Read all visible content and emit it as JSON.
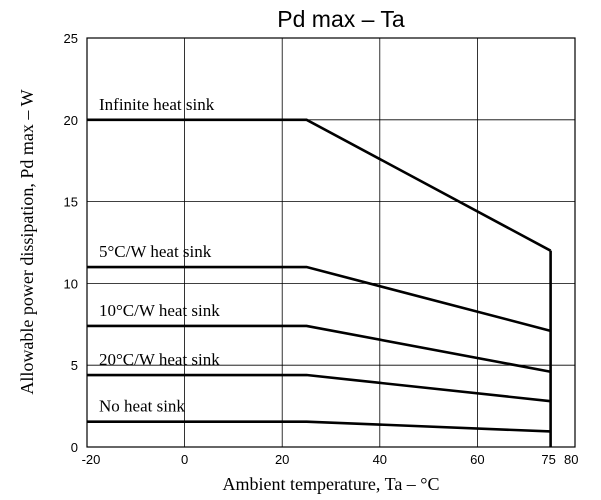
{
  "chart_data": {
    "type": "line",
    "title": "Pd max – Ta",
    "xlabel": "Ambient temperature,  Ta – °C",
    "ylabel": "Allowable power dissipation,  Pd max – W",
    "xlim": [
      -20,
      80
    ],
    "ylim": [
      0,
      25
    ],
    "xticks": [
      -20,
      0,
      20,
      40,
      60,
      75,
      80
    ],
    "xtick_labels": [
      "-20",
      "0",
      "20",
      "40",
      "60",
      "75",
      "80"
    ],
    "xgrid": [
      0,
      20,
      40,
      60
    ],
    "yticks": [
      0,
      5,
      10,
      15,
      20,
      25
    ],
    "ytick_labels": [
      "0",
      "5",
      "10",
      "15",
      "20",
      "25"
    ],
    "grid": true,
    "series": [
      {
        "name": "Infinite heat sink",
        "x": [
          -20,
          25,
          75
        ],
        "y": [
          20,
          20,
          12
        ]
      },
      {
        "name": "5°C/W heat sink",
        "x": [
          -20,
          25,
          75
        ],
        "y": [
          11,
          11,
          7.1
        ]
      },
      {
        "name": "10°C/W heat sink",
        "x": [
          -20,
          25,
          75
        ],
        "y": [
          7.4,
          7.4,
          4.6
        ]
      },
      {
        "name": "20°C/W heat sink",
        "x": [
          -20,
          25,
          75
        ],
        "y": [
          4.4,
          4.4,
          2.8
        ]
      },
      {
        "name": "No heat sink",
        "x": [
          -20,
          25,
          75
        ],
        "y": [
          1.55,
          1.55,
          0.95
        ]
      }
    ],
    "drop_line": {
      "x": 75,
      "from": 12,
      "to": 0
    }
  }
}
